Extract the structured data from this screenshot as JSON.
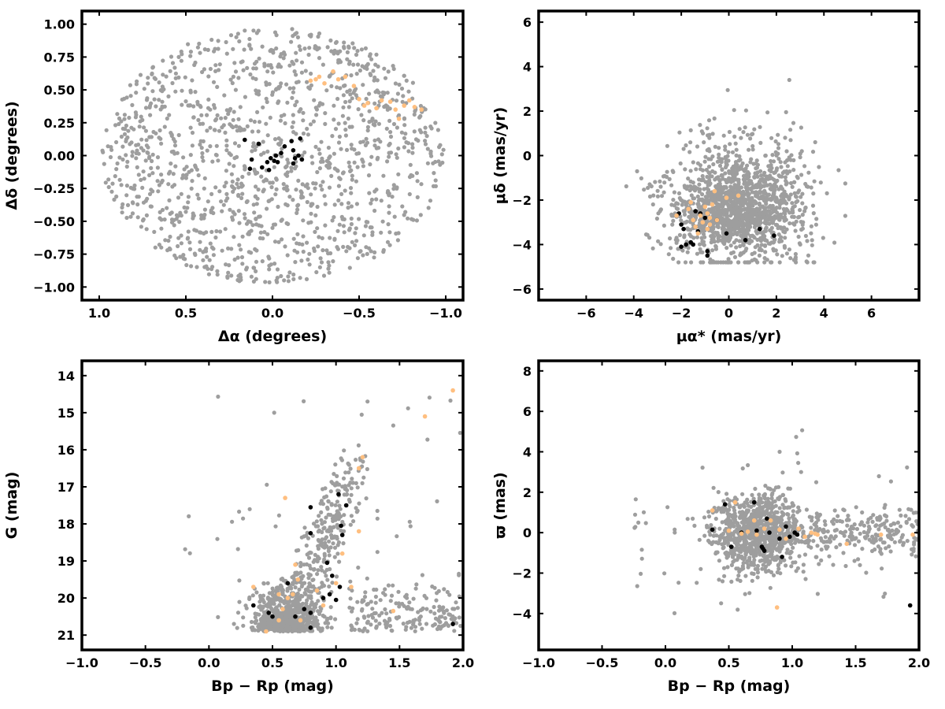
{
  "colors": {
    "field": "#9e9e9e",
    "member_core": "#000000",
    "member_extended": "#ffbf80",
    "frame": "#000000"
  },
  "chart_data": [
    {
      "type": "scatter",
      "xlabel": "Δα (degrees)",
      "ylabel": "Δδ (degrees)",
      "xlim": [
        1.1,
        -1.1
      ],
      "ylim": [
        -1.1,
        1.1
      ],
      "x_reversed": true,
      "xticks": [
        1.0,
        0.5,
        0.0,
        -0.5,
        -1.0
      ],
      "xtick_labels": [
        "1.0",
        "0.5",
        "0.0",
        "−0.5",
        "−1.0"
      ],
      "yticks": [
        -1.0,
        -0.75,
        -0.5,
        -0.25,
        0.0,
        0.25,
        0.5,
        0.75,
        1.0
      ],
      "ytick_labels": [
        "−1.00",
        "−0.75",
        "−0.50",
        "−0.25",
        "0.00",
        "0.25",
        "0.50",
        "0.75",
        "1.00"
      ],
      "grid": false,
      "legend": "none",
      "field_description": "uniform distribution within circle of radius 1.0 deg centred on (0,0)",
      "series": [
        {
          "color": "#000000",
          "points": [
            [
              0.16,
              0.12
            ],
            [
              0.12,
              -0.03
            ],
            [
              0.08,
              0.09
            ],
            [
              0.06,
              -0.09
            ],
            [
              0.03,
              -0.05
            ],
            [
              0.01,
              -0.02
            ],
            [
              -0.02,
              0.0
            ],
            [
              -0.03,
              -0.05
            ],
            [
              -0.05,
              0.02
            ],
            [
              -0.07,
              0.07
            ],
            [
              -0.11,
              0.11
            ],
            [
              -0.12,
              0.04
            ],
            [
              -0.13,
              -0.02
            ],
            [
              -0.15,
              0.0
            ],
            [
              -0.12,
              -0.06
            ],
            [
              -0.16,
              0.13
            ],
            [
              0.13,
              -0.1
            ],
            [
              -0.01,
              -0.04
            ],
            [
              0.02,
              -0.11
            ],
            [
              -0.17,
              -0.03
            ]
          ]
        },
        {
          "color": "#ffbf80",
          "points": [
            [
              -0.22,
              0.57
            ],
            [
              -0.27,
              0.6
            ],
            [
              -0.3,
              0.55
            ],
            [
              -0.35,
              0.64
            ],
            [
              -0.42,
              0.6
            ],
            [
              -0.47,
              0.53
            ],
            [
              -0.5,
              0.43
            ],
            [
              -0.53,
              0.38
            ],
            [
              -0.55,
              0.4
            ],
            [
              -0.6,
              0.36
            ],
            [
              -0.63,
              0.42
            ],
            [
              -0.68,
              0.41
            ],
            [
              -0.71,
              0.35
            ],
            [
              -0.73,
              0.28
            ],
            [
              -0.76,
              0.38
            ],
            [
              -0.79,
              0.42
            ],
            [
              -0.82,
              0.37
            ],
            [
              -0.86,
              0.35
            ],
            [
              -0.25,
              0.58
            ],
            [
              -0.38,
              0.58
            ]
          ]
        }
      ]
    },
    {
      "type": "scatter",
      "xlabel": "μα* (mas/yr)",
      "ylabel": "μδ (mas/yr)",
      "xlim": [
        -8,
        8
      ],
      "ylim": [
        -6.5,
        6.5
      ],
      "xticks": [
        -6,
        -4,
        -2,
        0,
        2,
        4,
        6
      ],
      "xtick_labels": [
        "−6",
        "−4",
        "−2",
        "0",
        "2",
        "4",
        "6"
      ],
      "yticks": [
        -6,
        -4,
        -2,
        0,
        2,
        4,
        6
      ],
      "ytick_labels": [
        "−6",
        "−4",
        "−2",
        "0",
        "2",
        "4",
        "6"
      ],
      "grid": false,
      "legend": "none",
      "field_description": "cloud between μα* −4.5…5 and μδ −4.8…3.7, densest near (0,−2.5)",
      "series": [
        {
          "color": "#000000",
          "points": [
            [
              -2.1,
              -2.6
            ],
            [
              -2.0,
              -3.1
            ],
            [
              -1.9,
              -3.3
            ],
            [
              -1.6,
              -3.9
            ],
            [
              -1.5,
              -4.0
            ],
            [
              -1.4,
              -2.5
            ],
            [
              -1.3,
              -3.4
            ],
            [
              -1.0,
              -2.8
            ],
            [
              -0.9,
              -4.3
            ],
            [
              -0.9,
              -4.5
            ],
            [
              -0.5,
              -2.9
            ],
            [
              -0.1,
              -3.5
            ],
            [
              0.7,
              -3.8
            ],
            [
              1.3,
              -3.3
            ],
            [
              1.9,
              -3.6
            ],
            [
              -1.8,
              -4.0
            ],
            [
              -2.0,
              -4.1
            ],
            [
              -1.2,
              -2.6
            ]
          ]
        },
        {
          "color": "#ffbf80",
          "points": [
            [
              -1.7,
              -2.4
            ],
            [
              -1.5,
              -2.9
            ],
            [
              -1.4,
              -3.2
            ],
            [
              -1.2,
              -2.7
            ],
            [
              -1.1,
              -3.0
            ],
            [
              -1.0,
              -2.3
            ],
            [
              -0.9,
              -2.6
            ],
            [
              -0.8,
              -3.1
            ],
            [
              -0.7,
              -2.2
            ],
            [
              -0.6,
              -1.6
            ],
            [
              -1.3,
              -3.5
            ],
            [
              -0.9,
              -3.3
            ],
            [
              -0.1,
              -1.9
            ],
            [
              0.4,
              -1.8
            ],
            [
              -2.2,
              -2.7
            ],
            [
              -0.5,
              -2.9
            ],
            [
              -1.6,
              -2.1
            ],
            [
              -0.8,
              -2.8
            ]
          ]
        }
      ]
    },
    {
      "type": "scatter",
      "xlabel": "Bp − Rp (mag)",
      "ylabel": "G (mag)",
      "xlim": [
        -1.0,
        2.0
      ],
      "ylim": [
        21.4,
        13.6
      ],
      "y_reversed": true,
      "xticks": [
        -1.0,
        -0.5,
        0.0,
        0.5,
        1.0,
        1.5,
        2.0
      ],
      "xtick_labels": [
        "−1.0",
        "−0.5",
        "0.0",
        "0.5",
        "1.0",
        "1.5",
        "2.0"
      ],
      "yticks": [
        14,
        15,
        16,
        17,
        18,
        19,
        20,
        21
      ],
      "ytick_labels": [
        "14",
        "15",
        "16",
        "17",
        "18",
        "19",
        "20",
        "21"
      ],
      "grid": false,
      "legend": "none",
      "field_description": "faint clump near (0.6, 20.2) with red giant branch down to (1.1,16.5) and red tail near G≈20.5",
      "series": [
        {
          "color": "#000000",
          "points": [
            [
              0.35,
              20.2
            ],
            [
              0.47,
              20.4
            ],
            [
              0.5,
              20.5
            ],
            [
              0.62,
              19.6
            ],
            [
              0.68,
              20.5
            ],
            [
              0.75,
              20.3
            ],
            [
              0.8,
              20.8
            ],
            [
              0.8,
              20.4
            ],
            [
              0.9,
              20.0
            ],
            [
              0.95,
              19.9
            ],
            [
              0.97,
              19.4
            ],
            [
              1.0,
              20.05
            ],
            [
              1.03,
              19.7
            ],
            [
              1.05,
              18.3
            ],
            [
              1.04,
              18.05
            ],
            [
              1.08,
              17.5
            ],
            [
              1.02,
              17.2
            ],
            [
              0.8,
              17.55
            ],
            [
              0.8,
              18.25
            ],
            [
              0.93,
              19.05
            ],
            [
              1.92,
              20.7
            ]
          ]
        },
        {
          "color": "#ffbf80",
          "points": [
            [
              0.45,
              20.9
            ],
            [
              0.55,
              20.6
            ],
            [
              0.58,
              20.3
            ],
            [
              0.62,
              20.0
            ],
            [
              0.66,
              19.9
            ],
            [
              0.7,
              19.5
            ],
            [
              0.72,
              20.6
            ],
            [
              0.55,
              19.9
            ],
            [
              0.68,
              19.1
            ],
            [
              0.85,
              19.8
            ],
            [
              0.9,
              20.2
            ],
            [
              1.0,
              19.6
            ],
            [
              1.12,
              19.7
            ],
            [
              1.05,
              18.8
            ],
            [
              1.18,
              18.2
            ],
            [
              1.18,
              16.5
            ],
            [
              1.21,
              16.2
            ],
            [
              1.45,
              20.35
            ],
            [
              0.6,
              17.3
            ],
            [
              1.7,
              15.1
            ],
            [
              1.92,
              14.4
            ],
            [
              0.35,
              19.7
            ]
          ]
        }
      ]
    },
    {
      "type": "scatter",
      "xlabel": "Bp − Rp (mag)",
      "ylabel": "ϖ (mas)",
      "xlim": [
        -1.0,
        2.0
      ],
      "ylim": [
        -5.8,
        8.5
      ],
      "xticks": [
        -1.0,
        -0.5,
        0.0,
        0.5,
        1.0,
        1.5,
        2.0
      ],
      "xtick_labels": [
        "−1.0",
        "−0.5",
        "0.0",
        "0.5",
        "1.0",
        "1.5",
        "2.0"
      ],
      "yticks": [
        -4,
        -2,
        0,
        2,
        4,
        6,
        8
      ],
      "ytick_labels": [
        "−4",
        "−2",
        "0",
        "2",
        "4",
        "6",
        "8"
      ],
      "grid": false,
      "legend": "none",
      "field_description": "dense clump at Bp−Rp 0.4–1.2, ϖ −3…3, with sparse tail to Bp−Rp 2.0 near ϖ≈0",
      "series": [
        {
          "color": "#000000",
          "points": [
            [
              0.37,
              0.15
            ],
            [
              0.47,
              1.4
            ],
            [
              0.52,
              -0.7
            ],
            [
              0.7,
              1.5
            ],
            [
              0.72,
              0.1
            ],
            [
              0.77,
              -0.8
            ],
            [
              0.78,
              -0.9
            ],
            [
              0.8,
              0.7
            ],
            [
              0.82,
              0.0
            ],
            [
              0.9,
              -0.3
            ],
            [
              0.92,
              -1.2
            ],
            [
              0.95,
              0.3
            ],
            [
              0.98,
              -0.2
            ],
            [
              1.02,
              0.0
            ],
            [
              1.04,
              -0.1
            ],
            [
              1.93,
              -3.6
            ],
            [
              0.76,
              -0.7
            ],
            [
              0.6,
              0.0
            ]
          ]
        },
        {
          "color": "#ffbf80",
          "points": [
            [
              0.37,
              1.1
            ],
            [
              0.55,
              1.5
            ],
            [
              0.6,
              -0.05
            ],
            [
              0.65,
              0.05
            ],
            [
              0.7,
              0.6
            ],
            [
              0.72,
              -0.1
            ],
            [
              0.78,
              0.2
            ],
            [
              0.83,
              0.6
            ],
            [
              0.88,
              -3.7
            ],
            [
              0.9,
              0.15
            ],
            [
              0.95,
              -0.3
            ],
            [
              1.05,
              0.2
            ],
            [
              1.1,
              -0.2
            ],
            [
              1.15,
              0.0
            ],
            [
              1.18,
              -0.05
            ],
            [
              1.2,
              -0.1
            ],
            [
              1.43,
              -0.55
            ],
            [
              1.7,
              -0.1
            ],
            [
              1.95,
              -0.1
            ],
            [
              0.5,
              0.1
            ]
          ]
        }
      ]
    }
  ]
}
